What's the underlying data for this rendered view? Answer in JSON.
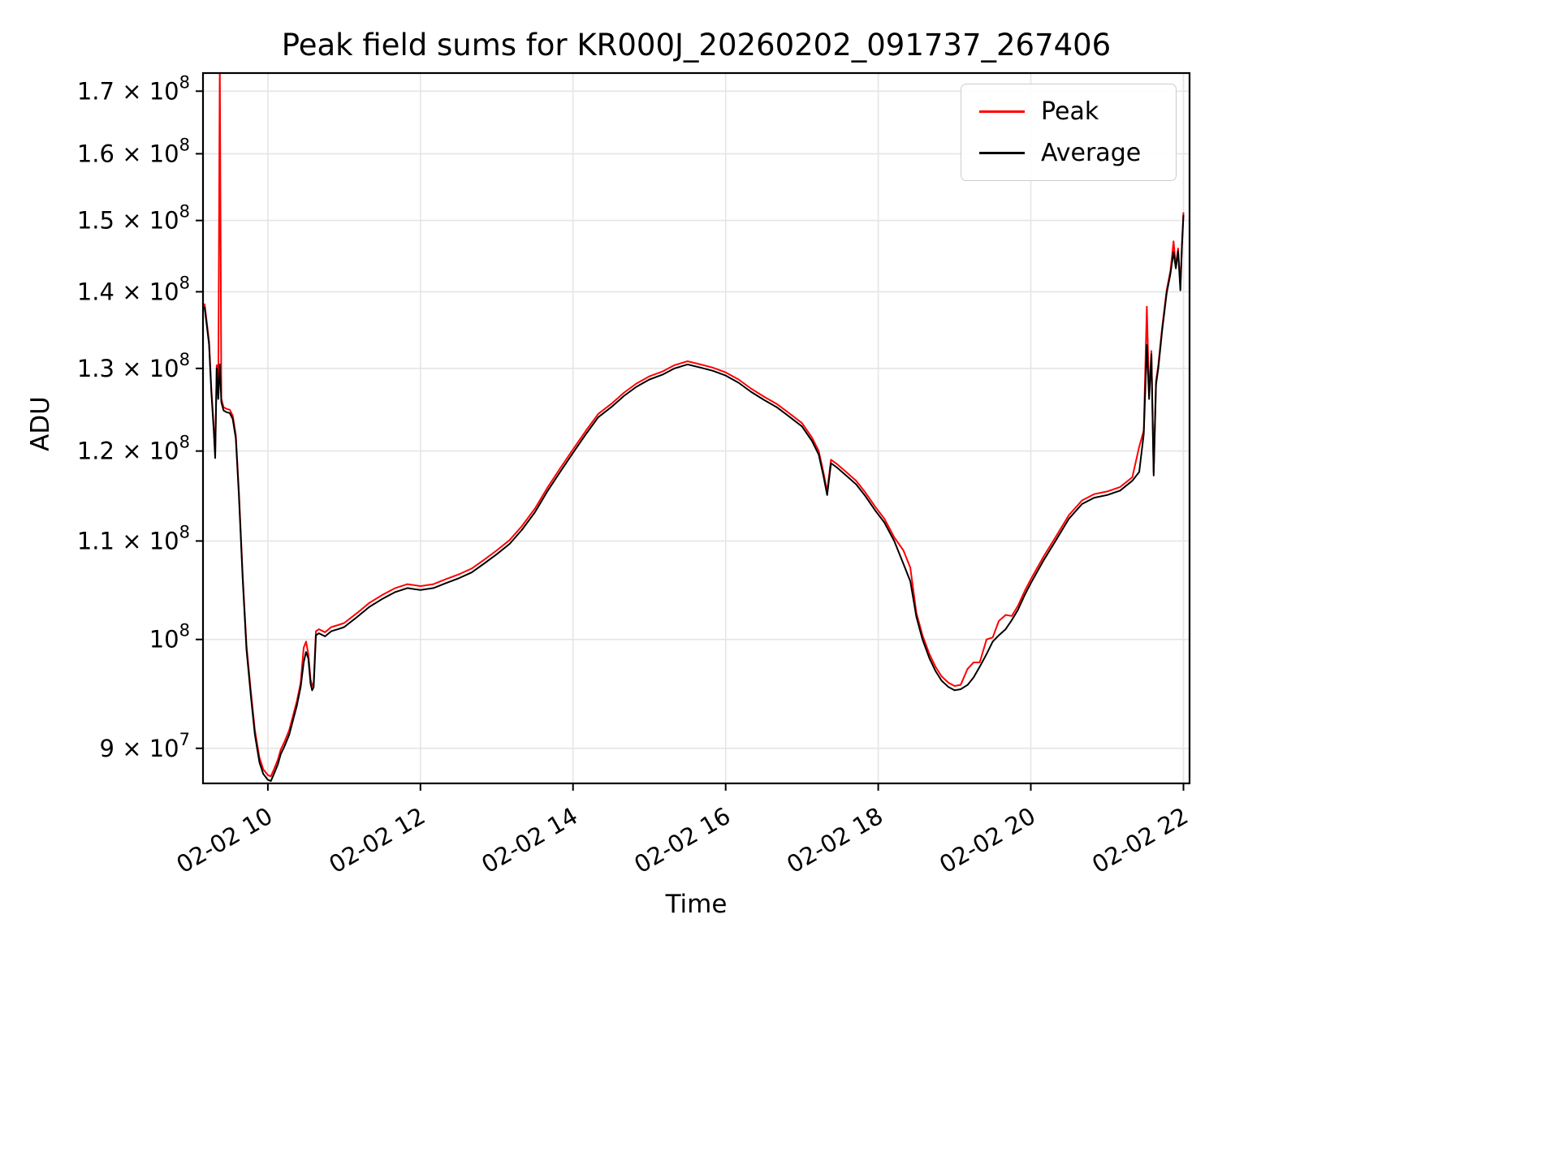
{
  "chart_data": {
    "type": "line",
    "title": "Peak field sums for KR000J_20260202_091737_267406",
    "xlabel": "Time",
    "ylabel": "ADU",
    "yscale": "log",
    "grid": true,
    "legend_position": "upper right",
    "xlim": [
      9.15,
      22.08
    ],
    "ylim": [
      87000000.0,
      173000000.0
    ],
    "x_units": "decimal hours on 2026-02-02",
    "y_units": "ADU",
    "y_scale": 100000000.0,
    "xticks": [
      {
        "v": 10,
        "label": "02-02 10"
      },
      {
        "v": 12,
        "label": "02-02 12"
      },
      {
        "v": 14,
        "label": "02-02 14"
      },
      {
        "v": 16,
        "label": "02-02 16"
      },
      {
        "v": 18,
        "label": "02-02 18"
      },
      {
        "v": 20,
        "label": "02-02 20"
      },
      {
        "v": 22,
        "label": "02-02 22"
      }
    ],
    "yticks": [
      {
        "v": 90000000.0,
        "label": "9 × 10^7"
      },
      {
        "v": 100000000.0,
        "label": "10^8"
      },
      {
        "v": 110000000.0,
        "label": "1.1 × 10^8"
      },
      {
        "v": 120000000.0,
        "label": "1.2 × 10^8"
      },
      {
        "v": 130000000.0,
        "label": "1.3 × 10^8"
      },
      {
        "v": 140000000.0,
        "label": "1.4 × 10^8"
      },
      {
        "v": 150000000.0,
        "label": "1.5 × 10^8"
      },
      {
        "v": 160000000.0,
        "label": "1.6 × 10^8"
      },
      {
        "v": 170000000.0,
        "label": "1.7 × 10^8"
      }
    ],
    "x": [
      9.17,
      9.2,
      9.23,
      9.26,
      9.29,
      9.31,
      9.33,
      9.35,
      9.37,
      9.39,
      9.42,
      9.46,
      9.5,
      9.54,
      9.58,
      9.62,
      9.67,
      9.72,
      9.78,
      9.83,
      9.89,
      9.94,
      10.0,
      10.04,
      10.08,
      10.13,
      10.17,
      10.22,
      10.28,
      10.33,
      10.38,
      10.43,
      10.47,
      10.5,
      10.53,
      10.56,
      10.58,
      10.6,
      10.63,
      10.67,
      10.75,
      10.83,
      10.92,
      11.0,
      11.17,
      11.33,
      11.5,
      11.67,
      11.83,
      12.0,
      12.17,
      12.33,
      12.5,
      12.67,
      12.83,
      13.0,
      13.17,
      13.33,
      13.5,
      13.67,
      13.83,
      14.0,
      14.17,
      14.33,
      14.5,
      14.67,
      14.83,
      15.0,
      15.17,
      15.33,
      15.5,
      15.67,
      15.83,
      16.0,
      16.17,
      16.33,
      16.5,
      16.67,
      16.83,
      17.0,
      17.13,
      17.22,
      17.28,
      17.33,
      17.38,
      17.46,
      17.58,
      17.71,
      17.83,
      17.96,
      18.08,
      18.21,
      18.33,
      18.42,
      18.5,
      18.58,
      18.67,
      18.75,
      18.83,
      18.92,
      19.0,
      19.08,
      19.17,
      19.25,
      19.33,
      19.42,
      19.5,
      19.58,
      19.67,
      19.75,
      19.83,
      19.92,
      20.0,
      20.17,
      20.33,
      20.5,
      20.67,
      20.83,
      21.0,
      21.17,
      21.33,
      21.42,
      21.48,
      21.52,
      21.55,
      21.58,
      21.61,
      21.64,
      21.67,
      21.72,
      21.78,
      21.83,
      21.87,
      21.9,
      21.93,
      21.96,
      21.98,
      22.0
    ],
    "series": [
      {
        "name": "Peak",
        "color": "#ff0000",
        "values": [
          1.384,
          1.359,
          1.334,
          1.274,
          1.229,
          1.196,
          1.304,
          1.266,
          1.75,
          1.262,
          1.252,
          1.25,
          1.249,
          1.242,
          1.219,
          1.154,
          1.064,
          0.994,
          0.949,
          0.916,
          0.892,
          0.882,
          0.877,
          0.876,
          0.882,
          0.89,
          0.899,
          0.906,
          0.916,
          0.929,
          0.942,
          0.959,
          0.992,
          0.998,
          0.986,
          0.962,
          0.956,
          0.959,
          1.008,
          1.01,
          1.007,
          1.012,
          1.014,
          1.016,
          1.026,
          1.036,
          1.044,
          1.051,
          1.055,
          1.053,
          1.055,
          1.06,
          1.065,
          1.071,
          1.08,
          1.09,
          1.101,
          1.116,
          1.135,
          1.159,
          1.18,
          1.202,
          1.224,
          1.244,
          1.256,
          1.27,
          1.281,
          1.29,
          1.296,
          1.304,
          1.309,
          1.305,
          1.301,
          1.295,
          1.286,
          1.275,
          1.265,
          1.256,
          1.245,
          1.233,
          1.216,
          1.2,
          1.176,
          1.154,
          1.19,
          1.185,
          1.176,
          1.166,
          1.153,
          1.137,
          1.124,
          1.104,
          1.09,
          1.072,
          1.026,
          1.004,
          0.986,
          0.974,
          0.965,
          0.959,
          0.956,
          0.957,
          0.972,
          0.978,
          0.978,
          1.0,
          1.002,
          1.018,
          1.024,
          1.023,
          1.033,
          1.048,
          1.06,
          1.084,
          1.105,
          1.128,
          1.144,
          1.151,
          1.154,
          1.159,
          1.17,
          1.205,
          1.224,
          1.38,
          1.266,
          1.322,
          1.176,
          1.284,
          1.304,
          1.352,
          1.402,
          1.429,
          1.47,
          1.436,
          1.46,
          1.406,
          1.466,
          1.512
        ]
      },
      {
        "name": "Average",
        "color": "#000000",
        "values": [
          1.38,
          1.355,
          1.33,
          1.27,
          1.225,
          1.192,
          1.3,
          1.262,
          1.305,
          1.258,
          1.248,
          1.246,
          1.245,
          1.238,
          1.215,
          1.15,
          1.06,
          0.99,
          0.945,
          0.912,
          0.888,
          0.878,
          0.873,
          0.872,
          0.878,
          0.886,
          0.895,
          0.902,
          0.912,
          0.925,
          0.938,
          0.955,
          0.978,
          0.988,
          0.982,
          0.958,
          0.952,
          0.955,
          1.004,
          1.006,
          1.003,
          1.008,
          1.01,
          1.012,
          1.022,
          1.032,
          1.04,
          1.047,
          1.051,
          1.049,
          1.051,
          1.056,
          1.061,
          1.067,
          1.076,
          1.086,
          1.097,
          1.112,
          1.131,
          1.155,
          1.176,
          1.198,
          1.22,
          1.24,
          1.252,
          1.266,
          1.277,
          1.286,
          1.292,
          1.3,
          1.305,
          1.301,
          1.297,
          1.291,
          1.282,
          1.271,
          1.261,
          1.252,
          1.241,
          1.229,
          1.212,
          1.196,
          1.172,
          1.15,
          1.186,
          1.181,
          1.172,
          1.162,
          1.149,
          1.133,
          1.12,
          1.1,
          1.076,
          1.058,
          1.022,
          1.0,
          0.982,
          0.97,
          0.961,
          0.955,
          0.952,
          0.953,
          0.957,
          0.964,
          0.974,
          0.986,
          0.998,
          1.004,
          1.01,
          1.019,
          1.029,
          1.044,
          1.056,
          1.08,
          1.101,
          1.124,
          1.14,
          1.147,
          1.15,
          1.155,
          1.166,
          1.176,
          1.22,
          1.33,
          1.262,
          1.318,
          1.172,
          1.28,
          1.3,
          1.348,
          1.398,
          1.425,
          1.455,
          1.432,
          1.456,
          1.402,
          1.462,
          1.508
        ]
      }
    ]
  }
}
